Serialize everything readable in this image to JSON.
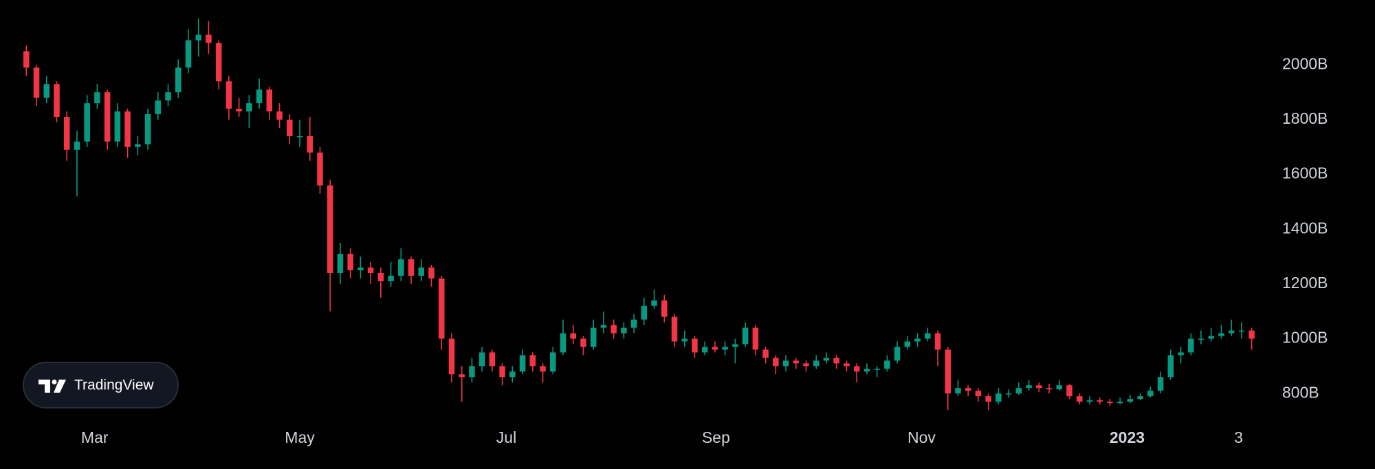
{
  "chart_data": {
    "type": "candlestick",
    "watermark": "TradingView",
    "up_color": "#089981",
    "down_color": "#f23645",
    "background": "#000000",
    "ylim": [
      700,
      2237
    ],
    "yticks": [
      {
        "value": 800,
        "label": "800B"
      },
      {
        "value": 1000,
        "label": "1000B"
      },
      {
        "value": 1200,
        "label": "1200B"
      },
      {
        "value": 1400,
        "label": "1400B"
      },
      {
        "value": 1600,
        "label": "1600B"
      },
      {
        "value": 1800,
        "label": "1800B"
      },
      {
        "value": 2000,
        "label": "2000B"
      }
    ],
    "xticks": [
      {
        "value": 6.75,
        "label": "Mar"
      },
      {
        "value": 27,
        "label": "May"
      },
      {
        "value": 47.4,
        "label": "Jul"
      },
      {
        "value": 68.1,
        "label": "Sep"
      },
      {
        "value": 88.4,
        "label": "Nov"
      },
      {
        "value": 108.7,
        "label": "2023",
        "bold": true
      },
      {
        "value": 119.7,
        "label": "3"
      }
    ],
    "candles": [
      [
        2050,
        2070,
        1960,
        1990
      ],
      [
        1990,
        2000,
        1850,
        1880
      ],
      [
        1880,
        1960,
        1860,
        1930
      ],
      [
        1930,
        1940,
        1790,
        1810
      ],
      [
        1810,
        1830,
        1650,
        1690
      ],
      [
        1690,
        1760,
        1520,
        1720
      ],
      [
        1720,
        1890,
        1700,
        1860
      ],
      [
        1860,
        1930,
        1840,
        1900
      ],
      [
        1900,
        1910,
        1690,
        1720
      ],
      [
        1720,
        1860,
        1700,
        1830
      ],
      [
        1830,
        1840,
        1660,
        1700
      ],
      [
        1700,
        1740,
        1670,
        1710
      ],
      [
        1710,
        1840,
        1690,
        1820
      ],
      [
        1820,
        1900,
        1800,
        1870
      ],
      [
        1870,
        1930,
        1850,
        1900
      ],
      [
        1900,
        2020,
        1880,
        1990
      ],
      [
        1990,
        2130,
        1970,
        2090
      ],
      [
        2090,
        2170,
        2030,
        2110
      ],
      [
        2110,
        2160,
        2040,
        2080
      ],
      [
        2080,
        2090,
        1910,
        1940
      ],
      [
        1940,
        1960,
        1800,
        1840
      ],
      [
        1840,
        1880,
        1810,
        1830
      ],
      [
        1830,
        1890,
        1770,
        1860
      ],
      [
        1860,
        1950,
        1840,
        1910
      ],
      [
        1910,
        1920,
        1800,
        1830
      ],
      [
        1830,
        1860,
        1770,
        1800
      ],
      [
        1800,
        1820,
        1710,
        1740
      ],
      [
        1740,
        1800,
        1700,
        1740
      ],
      [
        1740,
        1810,
        1650,
        1680
      ],
      [
        1680,
        1700,
        1530,
        1560
      ],
      [
        1560,
        1580,
        1100,
        1240
      ],
      [
        1240,
        1350,
        1200,
        1310
      ],
      [
        1310,
        1330,
        1220,
        1250
      ],
      [
        1250,
        1300,
        1220,
        1260
      ],
      [
        1260,
        1280,
        1200,
        1240
      ],
      [
        1240,
        1260,
        1150,
        1210
      ],
      [
        1210,
        1280,
        1190,
        1230
      ],
      [
        1230,
        1330,
        1210,
        1290
      ],
      [
        1290,
        1300,
        1200,
        1230
      ],
      [
        1230,
        1290,
        1210,
        1260
      ],
      [
        1260,
        1270,
        1190,
        1220
      ],
      [
        1220,
        1230,
        960,
        1000
      ],
      [
        1000,
        1020,
        840,
        870
      ],
      [
        870,
        900,
        770,
        860
      ],
      [
        860,
        930,
        840,
        900
      ],
      [
        900,
        970,
        880,
        950
      ],
      [
        950,
        960,
        880,
        900
      ],
      [
        900,
        910,
        830,
        860
      ],
      [
        860,
        900,
        840,
        880
      ],
      [
        880,
        960,
        870,
        940
      ],
      [
        940,
        950,
        880,
        900
      ],
      [
        900,
        910,
        840,
        880
      ],
      [
        880,
        970,
        870,
        950
      ],
      [
        950,
        1070,
        940,
        1020
      ],
      [
        1020,
        1050,
        980,
        1000
      ],
      [
        1000,
        1010,
        940,
        970
      ],
      [
        970,
        1070,
        960,
        1040
      ],
      [
        1040,
        1100,
        1020,
        1050
      ],
      [
        1050,
        1070,
        1000,
        1020
      ],
      [
        1020,
        1060,
        1000,
        1040
      ],
      [
        1040,
        1090,
        1020,
        1070
      ],
      [
        1070,
        1150,
        1050,
        1120
      ],
      [
        1120,
        1180,
        1110,
        1140
      ],
      [
        1140,
        1160,
        1060,
        1080
      ],
      [
        1080,
        1090,
        970,
        990
      ],
      [
        990,
        1030,
        970,
        1000
      ],
      [
        1000,
        1010,
        930,
        950
      ],
      [
        950,
        990,
        940,
        970
      ],
      [
        970,
        990,
        950,
        960
      ],
      [
        960,
        990,
        940,
        970
      ],
      [
        970,
        1000,
        910,
        980
      ],
      [
        980,
        1060,
        970,
        1040
      ],
      [
        1040,
        1050,
        940,
        960
      ],
      [
        960,
        970,
        910,
        930
      ],
      [
        930,
        940,
        870,
        900
      ],
      [
        900,
        940,
        880,
        920
      ],
      [
        920,
        930,
        890,
        910
      ],
      [
        910,
        920,
        880,
        900
      ],
      [
        900,
        940,
        890,
        920
      ],
      [
        920,
        950,
        910,
        930
      ],
      [
        930,
        940,
        890,
        910
      ],
      [
        910,
        920,
        880,
        900
      ],
      [
        900,
        910,
        840,
        880
      ],
      [
        880,
        910,
        870,
        890
      ],
      [
        890,
        900,
        860,
        890
      ],
      [
        890,
        940,
        880,
        920
      ],
      [
        920,
        990,
        910,
        970
      ],
      [
        970,
        1010,
        960,
        990
      ],
      [
        990,
        1020,
        970,
        1000
      ],
      [
        1000,
        1040,
        990,
        1020
      ],
      [
        1020,
        1030,
        900,
        960
      ],
      [
        960,
        970,
        740,
        800
      ],
      [
        800,
        850,
        790,
        820
      ],
      [
        820,
        830,
        790,
        810
      ],
      [
        810,
        820,
        770,
        790
      ],
      [
        790,
        800,
        740,
        770
      ],
      [
        770,
        820,
        760,
        800
      ],
      [
        800,
        815,
        785,
        800
      ],
      [
        800,
        840,
        795,
        820
      ],
      [
        820,
        850,
        810,
        830
      ],
      [
        830,
        840,
        805,
        820
      ],
      [
        820,
        835,
        800,
        815
      ],
      [
        815,
        850,
        810,
        830
      ],
      [
        830,
        835,
        780,
        790
      ],
      [
        790,
        800,
        760,
        770
      ],
      [
        770,
        790,
        760,
        775
      ],
      [
        775,
        785,
        760,
        770
      ],
      [
        770,
        780,
        755,
        765
      ],
      [
        765,
        785,
        760,
        770
      ],
      [
        770,
        795,
        765,
        780
      ],
      [
        780,
        800,
        775,
        790
      ],
      [
        790,
        825,
        785,
        810
      ],
      [
        810,
        880,
        800,
        860
      ],
      [
        860,
        960,
        850,
        940
      ],
      [
        940,
        970,
        910,
        950
      ],
      [
        950,
        1020,
        940,
        1000
      ],
      [
        1000,
        1030,
        980,
        1000
      ],
      [
        1000,
        1040,
        990,
        1010
      ],
      [
        1010,
        1050,
        1000,
        1020
      ],
      [
        1020,
        1070,
        1010,
        1030
      ],
      [
        1030,
        1060,
        1000,
        1030
      ],
      [
        1030,
        1040,
        960,
        1000
      ]
    ]
  }
}
